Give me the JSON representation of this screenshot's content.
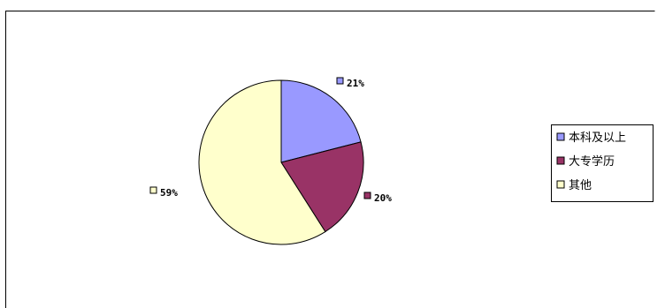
{
  "chart_data": {
    "type": "pie",
    "categories": [
      "本科及以上",
      "大专学历",
      "其他"
    ],
    "values": [
      21,
      20,
      59
    ],
    "data_labels": [
      "21%",
      "20%",
      "59%"
    ],
    "colors": [
      "#9999ff",
      "#993366",
      "#ffffcc"
    ],
    "start_angle_deg": 0,
    "direction": "clockwise",
    "legend_position": "right",
    "grid": false
  }
}
